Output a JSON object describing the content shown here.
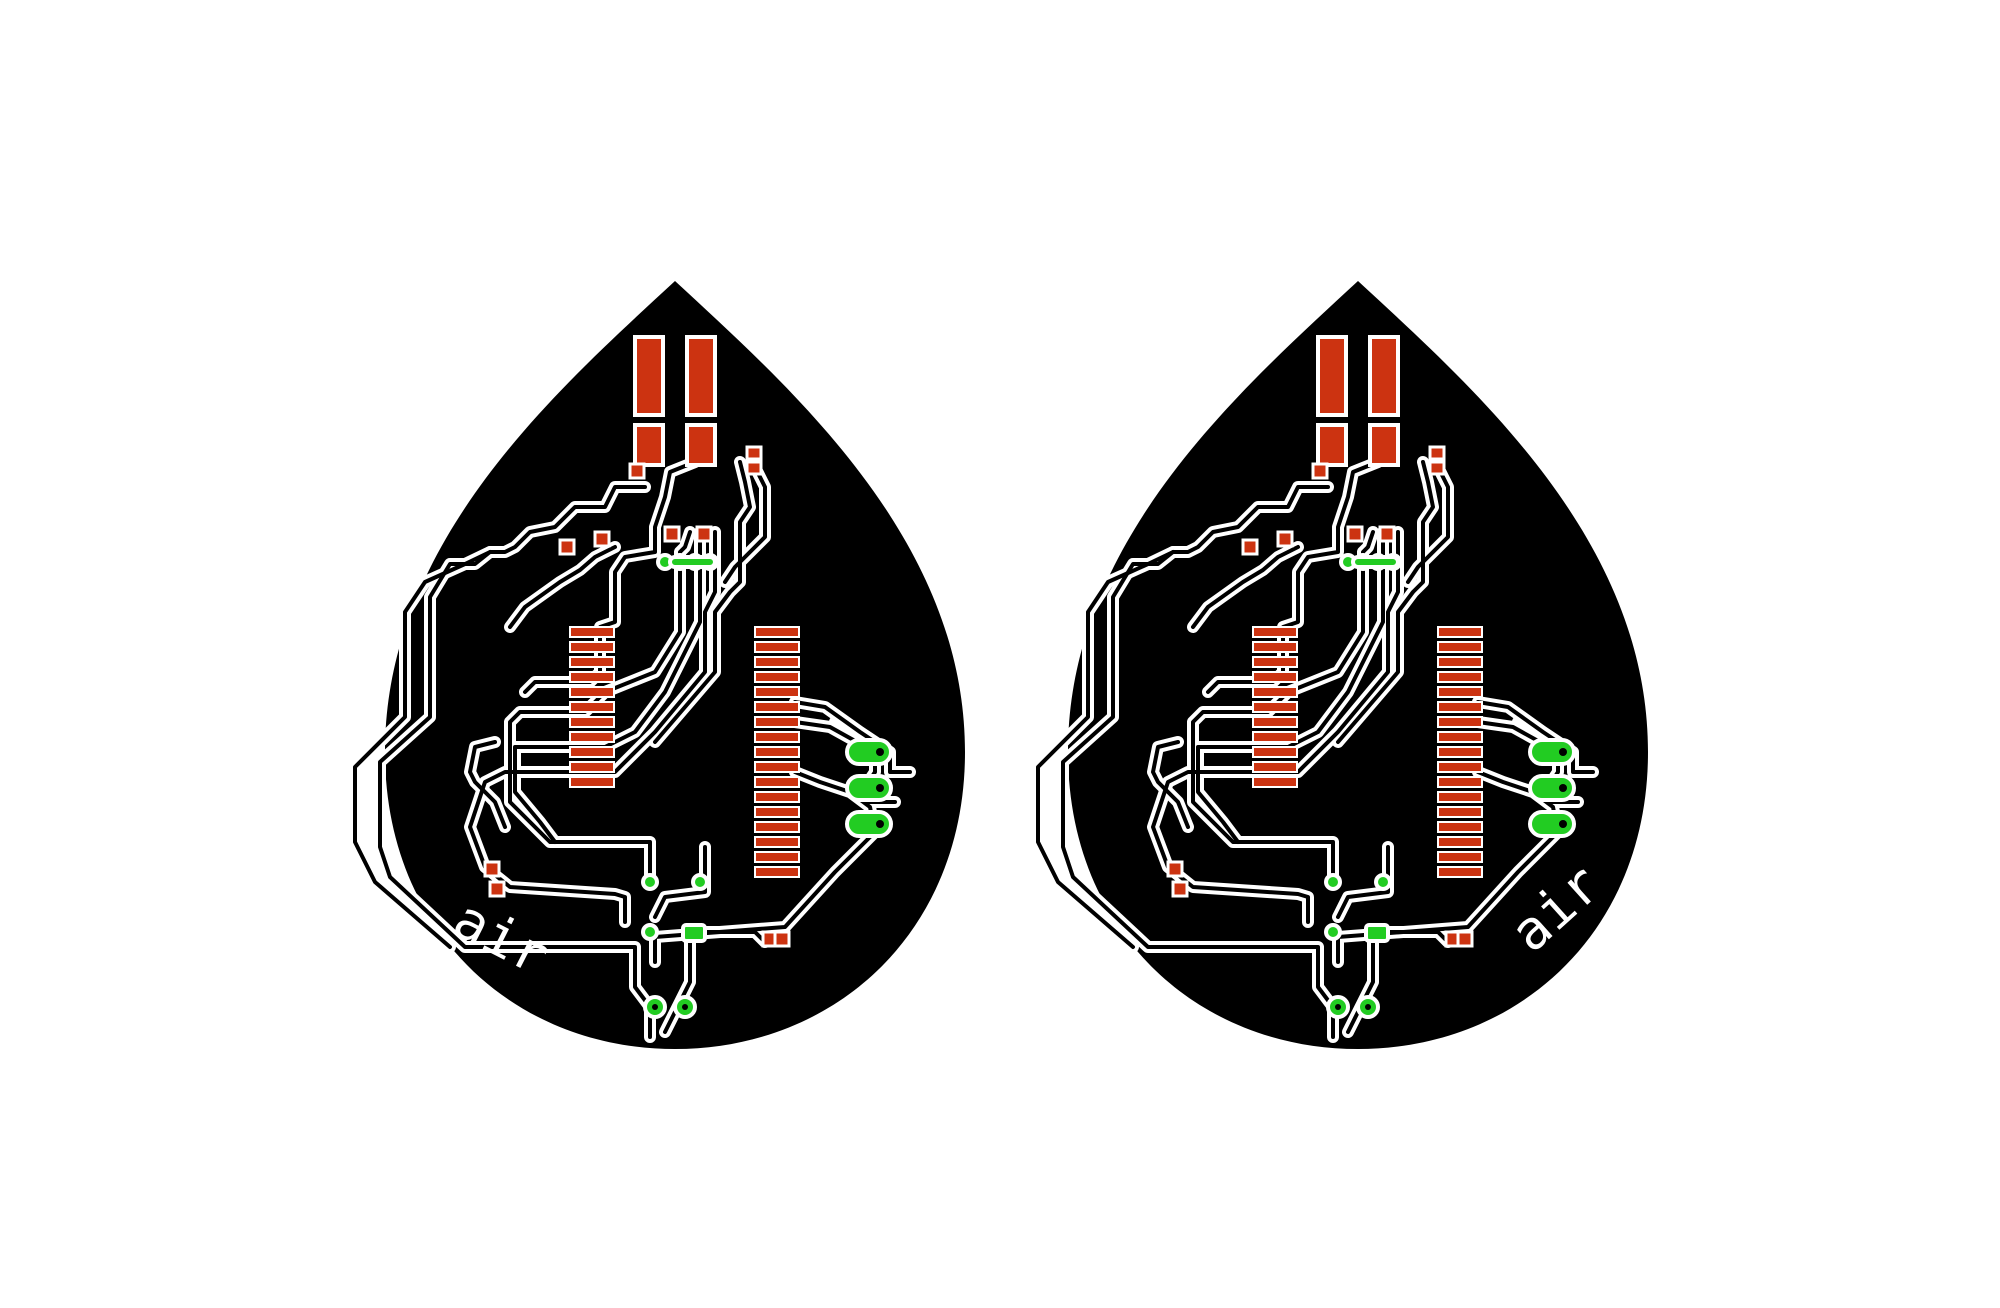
{
  "boards": [
    {
      "id": "left",
      "label": "air"
    },
    {
      "id": "right",
      "label": "air"
    }
  ],
  "colors": {
    "background": "#ffffff",
    "board": "#000000",
    "trace": "#ffffff",
    "copper_pad": "#cc3311",
    "via_pad": "#22cc22"
  }
}
